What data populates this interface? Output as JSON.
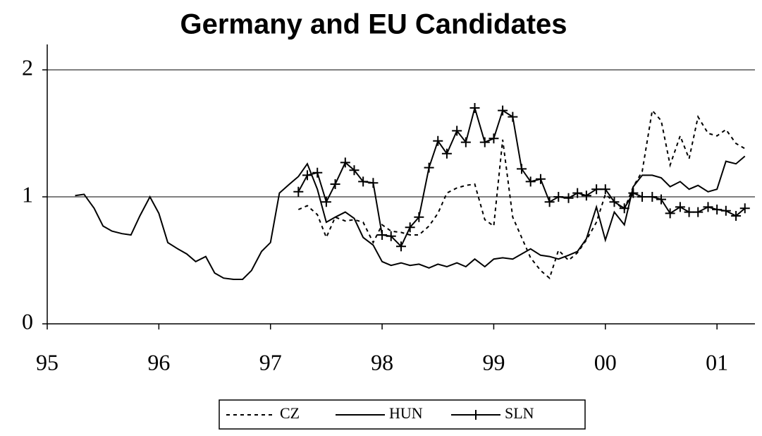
{
  "chart_data": {
    "type": "line",
    "title": "Germany and EU Candidates",
    "x": [
      1995.25,
      1995.33,
      1995.42,
      1995.5,
      1995.58,
      1995.67,
      1995.75,
      1995.83,
      1995.92,
      1996,
      1996.08,
      1996.17,
      1996.25,
      1996.33,
      1996.42,
      1996.5,
      1996.58,
      1996.67,
      1996.75,
      1996.83,
      1996.92,
      1997,
      1997.08,
      1997.17,
      1997.25,
      1997.33,
      1997.42,
      1997.5,
      1997.58,
      1997.67,
      1997.75,
      1997.83,
      1997.92,
      1998,
      1998.08,
      1998.17,
      1998.25,
      1998.33,
      1998.42,
      1998.5,
      1998.58,
      1998.67,
      1998.75,
      1998.83,
      1998.92,
      1999,
      1999.08,
      1999.17,
      1999.25,
      1999.33,
      1999.42,
      1999.5,
      1999.58,
      1999.67,
      1999.75,
      1999.83,
      1999.92,
      2000,
      2000.08,
      2000.17,
      2000.25,
      2000.33,
      2000.42,
      2000.5,
      2000.58,
      2000.67,
      2000.75,
      2000.83,
      2000.92,
      2001,
      2001.08,
      2001.17,
      2001.25
    ],
    "series": [
      {
        "name": "CZ",
        "color": "#000000",
        "line_style": "dashed",
        "marker": "none",
        "values": [
          null,
          null,
          null,
          null,
          null,
          null,
          null,
          null,
          null,
          null,
          null,
          null,
          null,
          null,
          null,
          null,
          null,
          null,
          null,
          null,
          null,
          null,
          null,
          null,
          0.9,
          0.93,
          0.86,
          0.68,
          0.84,
          0.81,
          0.82,
          0.8,
          0.64,
          0.78,
          0.73,
          0.72,
          0.7,
          0.7,
          0.77,
          0.87,
          1.03,
          1.07,
          1.09,
          1.1,
          0.82,
          0.77,
          1.45,
          0.84,
          0.68,
          0.52,
          0.42,
          0.36,
          0.58,
          0.5,
          0.56,
          0.66,
          0.8,
          1.02,
          0.96,
          0.9,
          1.08,
          1.2,
          1.68,
          1.6,
          1.25,
          1.48,
          1.3,
          1.63,
          1.5,
          1.48,
          1.53,
          1.42,
          1.38
        ]
      },
      {
        "name": "HUN",
        "color": "#000000",
        "line_style": "solid",
        "marker": "none",
        "values": [
          1.01,
          1.02,
          0.91,
          0.77,
          0.73,
          0.71,
          0.7,
          0.85,
          1.0,
          0.87,
          0.64,
          0.59,
          0.55,
          0.49,
          0.53,
          0.4,
          0.36,
          0.35,
          0.35,
          0.42,
          0.57,
          0.64,
          1.03,
          1.1,
          1.16,
          1.26,
          1.06,
          0.8,
          0.84,
          0.88,
          0.83,
          0.68,
          0.62,
          0.49,
          0.46,
          0.48,
          0.46,
          0.47,
          0.44,
          0.47,
          0.45,
          0.48,
          0.45,
          0.51,
          0.45,
          0.51,
          0.52,
          0.51,
          0.55,
          0.59,
          0.54,
          0.53,
          0.51,
          0.54,
          0.57,
          0.67,
          0.92,
          0.66,
          0.88,
          0.78,
          1.08,
          1.17,
          1.17,
          1.15,
          1.08,
          1.12,
          1.06,
          1.09,
          1.04,
          1.06,
          1.28,
          1.26,
          1.32
        ]
      },
      {
        "name": "SLN",
        "color": "#000000",
        "line_style": "solid",
        "marker": "plus",
        "values": [
          null,
          null,
          null,
          null,
          null,
          null,
          null,
          null,
          null,
          null,
          null,
          null,
          null,
          null,
          null,
          null,
          null,
          null,
          null,
          null,
          null,
          null,
          null,
          null,
          1.04,
          1.17,
          1.19,
          0.96,
          1.1,
          1.27,
          1.21,
          1.12,
          1.11,
          0.7,
          0.69,
          0.61,
          0.76,
          0.84,
          1.23,
          1.44,
          1.34,
          1.52,
          1.43,
          1.7,
          1.43,
          1.46,
          1.68,
          1.63,
          1.22,
          1.12,
          1.14,
          0.96,
          1.0,
          0.99,
          1.03,
          1.01,
          1.06,
          1.06,
          0.96,
          0.91,
          1.03,
          1.0,
          1.0,
          0.98,
          0.87,
          0.92,
          0.88,
          0.88,
          0.92,
          0.9,
          0.89,
          0.85,
          0.91
        ]
      }
    ],
    "xlim": [
      1995,
      2001.34
    ],
    "ylim": [
      0,
      2.2
    ],
    "xticks": [
      {
        "value": 1995,
        "label": "95"
      },
      {
        "value": 1996,
        "label": "96"
      },
      {
        "value": 1997,
        "label": "97"
      },
      {
        "value": 1998,
        "label": "98"
      },
      {
        "value": 1999,
        "label": "99"
      },
      {
        "value": 2000,
        "label": "00"
      },
      {
        "value": 2001,
        "label": "01"
      }
    ],
    "yticks": [
      0,
      1,
      2
    ],
    "grid": true,
    "legend": "bottom"
  }
}
